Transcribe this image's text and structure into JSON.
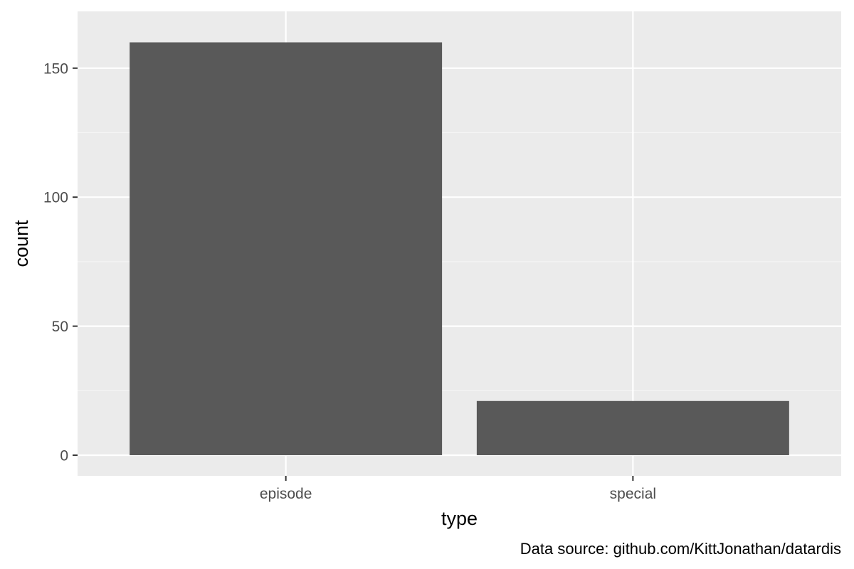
{
  "chart_data": {
    "type": "bar",
    "categories": [
      "episode",
      "special"
    ],
    "values": [
      160,
      21
    ],
    "title": "",
    "xlabel": "type",
    "ylabel": "count",
    "ylim": [
      -8,
      172
    ],
    "yticks": [
      0,
      50,
      100,
      150
    ],
    "grid": true,
    "legend": "none",
    "caption": "Data source: github.com/KittJonathan/datardis"
  },
  "colors": {
    "panel_background": "#ebebeb",
    "grid_major": "#ffffff",
    "grid_minor": "#f5f5f5",
    "bar_fill": "#595959",
    "tick_text": "#4d4d4d",
    "tick_line": "#333333"
  }
}
